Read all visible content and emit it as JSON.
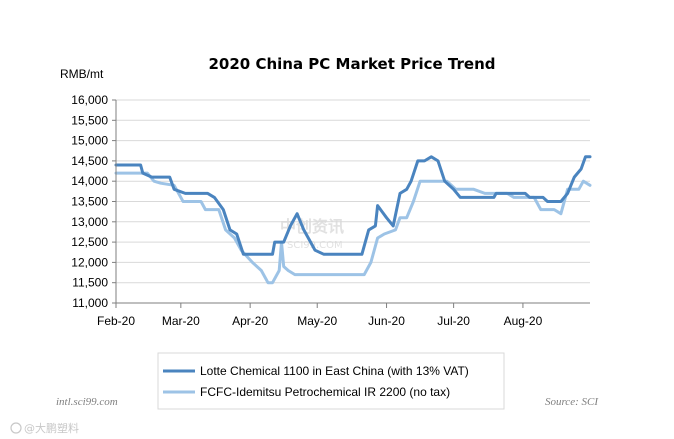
{
  "chart_data": {
    "type": "line",
    "title": "2020 China PC Market Price Trend",
    "ylabel": "RMB/mt",
    "ylim": [
      11000,
      16000
    ],
    "yticks": [
      11000,
      11500,
      12000,
      12500,
      13000,
      13500,
      14000,
      14500,
      15000,
      15500,
      16000
    ],
    "ytick_labels": [
      "11,000",
      "11,500",
      "12,000",
      "12,500",
      "13,000",
      "13,500",
      "14,000",
      "14,500",
      "15,000",
      "15,500",
      "16,000"
    ],
    "xticks": [
      "Feb-20",
      "Mar-20",
      "Apr-20",
      "May-20",
      "Jun-20",
      "Jul-20",
      "Aug-20"
    ],
    "x_domain": [
      "2020-02-01",
      "2020-08-31"
    ],
    "grid": "horizontal",
    "legend_position": "bottom",
    "series": [
      {
        "name": "Lotte Chemical 1100 in East China (with 13% VAT)",
        "color": "#4a84bf",
        "points": [
          [
            "2020-02-01",
            14400
          ],
          [
            "2020-02-12",
            14400
          ],
          [
            "2020-02-13",
            14200
          ],
          [
            "2020-02-17",
            14100
          ],
          [
            "2020-02-25",
            14100
          ],
          [
            "2020-02-27",
            13800
          ],
          [
            "2020-03-03",
            13700
          ],
          [
            "2020-03-13",
            13700
          ],
          [
            "2020-03-16",
            13600
          ],
          [
            "2020-03-20",
            13300
          ],
          [
            "2020-03-23",
            12800
          ],
          [
            "2020-03-26",
            12700
          ],
          [
            "2020-03-29",
            12200
          ],
          [
            "2020-04-11",
            12200
          ],
          [
            "2020-04-12",
            12500
          ],
          [
            "2020-04-16",
            12500
          ],
          [
            "2020-04-19",
            12900
          ],
          [
            "2020-04-22",
            13200
          ],
          [
            "2020-04-25",
            12800
          ],
          [
            "2020-04-27",
            12600
          ],
          [
            "2020-04-30",
            12300
          ],
          [
            "2020-05-04",
            12200
          ],
          [
            "2020-05-21",
            12200
          ],
          [
            "2020-05-24",
            12800
          ],
          [
            "2020-05-27",
            12900
          ],
          [
            "2020-05-28",
            13400
          ],
          [
            "2020-06-01",
            13100
          ],
          [
            "2020-06-04",
            12900
          ],
          [
            "2020-06-07",
            13700
          ],
          [
            "2020-06-10",
            13800
          ],
          [
            "2020-06-12",
            14000
          ],
          [
            "2020-06-15",
            14500
          ],
          [
            "2020-06-18",
            14500
          ],
          [
            "2020-06-21",
            14600
          ],
          [
            "2020-06-24",
            14500
          ],
          [
            "2020-06-27",
            14000
          ],
          [
            "2020-07-01",
            13800
          ],
          [
            "2020-07-04",
            13600
          ],
          [
            "2020-07-19",
            13600
          ],
          [
            "2020-07-20",
            13700
          ],
          [
            "2020-08-02",
            13700
          ],
          [
            "2020-08-04",
            13600
          ],
          [
            "2020-08-10",
            13600
          ],
          [
            "2020-08-12",
            13500
          ],
          [
            "2020-08-18",
            13500
          ],
          [
            "2020-08-21",
            13700
          ],
          [
            "2020-08-24",
            14100
          ],
          [
            "2020-08-27",
            14300
          ],
          [
            "2020-08-29",
            14600
          ],
          [
            "2020-08-31",
            14600
          ]
        ]
      },
      {
        "name": "FCFC-Idemitsu Petrochemical IR 2200 (no tax)",
        "color": "#9dc3e6",
        "points": [
          [
            "2020-02-01",
            14200
          ],
          [
            "2020-02-15",
            14200
          ],
          [
            "2020-02-18",
            14000
          ],
          [
            "2020-02-21",
            13950
          ],
          [
            "2020-02-27",
            13900
          ],
          [
            "2020-03-02",
            13500
          ],
          [
            "2020-03-10",
            13500
          ],
          [
            "2020-03-12",
            13300
          ],
          [
            "2020-03-18",
            13300
          ],
          [
            "2020-03-21",
            12800
          ],
          [
            "2020-03-25",
            12600
          ],
          [
            "2020-03-28",
            12300
          ],
          [
            "2020-04-02",
            12000
          ],
          [
            "2020-04-06",
            11800
          ],
          [
            "2020-04-09",
            11500
          ],
          [
            "2020-04-11",
            11500
          ],
          [
            "2020-04-14",
            11800
          ],
          [
            "2020-04-15",
            12500
          ],
          [
            "2020-04-16",
            11900
          ],
          [
            "2020-04-18",
            11800
          ],
          [
            "2020-04-21",
            11700
          ],
          [
            "2020-05-22",
            11700
          ],
          [
            "2020-05-25",
            12000
          ],
          [
            "2020-05-28",
            12600
          ],
          [
            "2020-05-31",
            12700
          ],
          [
            "2020-06-05",
            12800
          ],
          [
            "2020-06-07",
            13100
          ],
          [
            "2020-06-10",
            13100
          ],
          [
            "2020-06-13",
            13500
          ],
          [
            "2020-06-16",
            14000
          ],
          [
            "2020-06-28",
            14000
          ],
          [
            "2020-07-02",
            13800
          ],
          [
            "2020-07-10",
            13800
          ],
          [
            "2020-07-15",
            13700
          ],
          [
            "2020-07-25",
            13700
          ],
          [
            "2020-07-28",
            13600
          ],
          [
            "2020-08-06",
            13600
          ],
          [
            "2020-08-09",
            13300
          ],
          [
            "2020-08-15",
            13300
          ],
          [
            "2020-08-18",
            13200
          ],
          [
            "2020-08-21",
            13800
          ],
          [
            "2020-08-26",
            13800
          ],
          [
            "2020-08-28",
            14000
          ],
          [
            "2020-08-31",
            13900
          ]
        ]
      }
    ]
  },
  "footer": {
    "left_text": "intl.sci99.com",
    "right_text": "Source: SCI"
  },
  "watermark": {
    "text": "中创资讯",
    "caption": "SCI99.COM"
  },
  "corner_logo": {
    "text": "@大鹏塑料"
  }
}
